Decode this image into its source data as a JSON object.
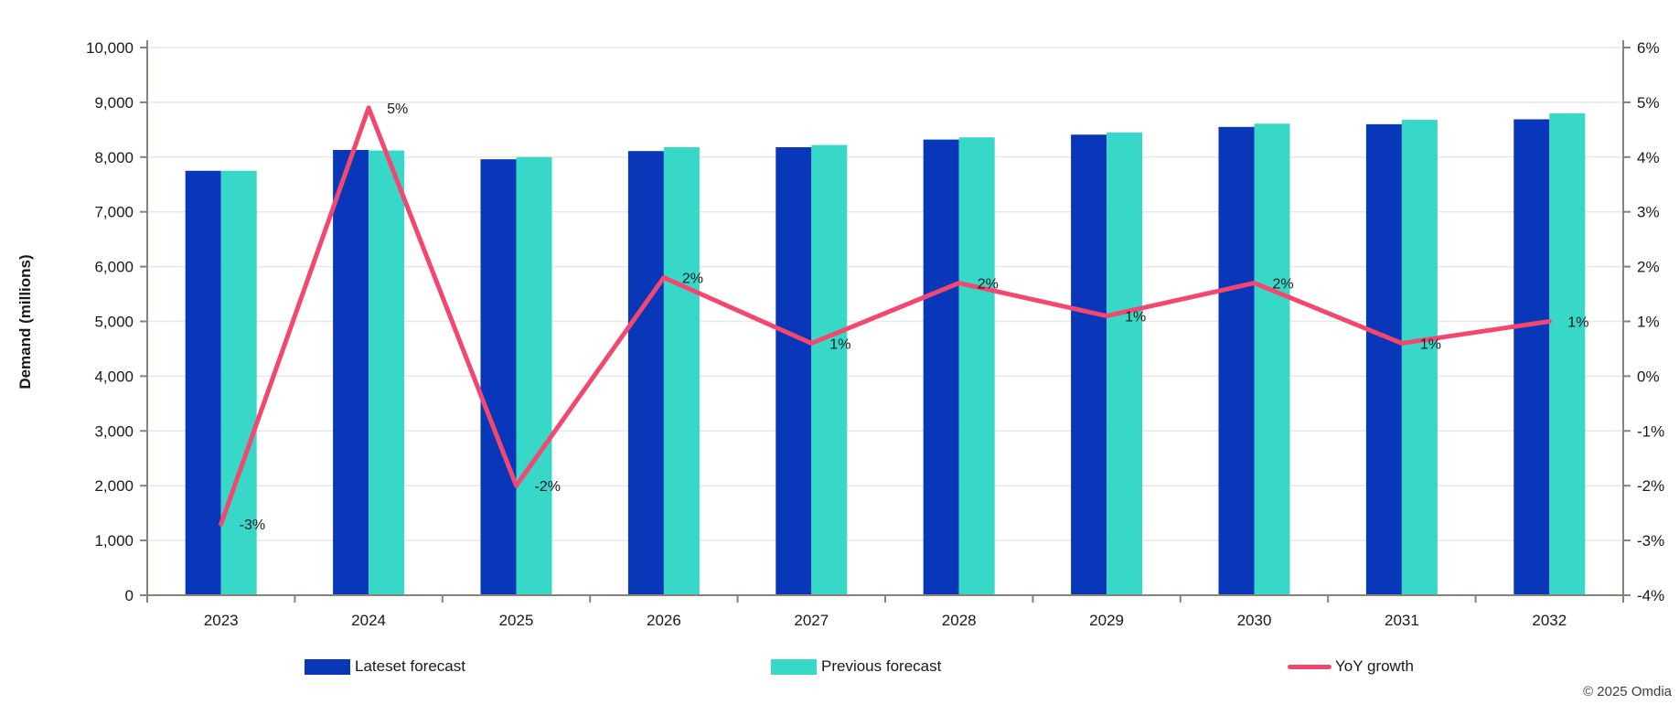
{
  "chart_data": {
    "type": "bar",
    "subtype": "grouped-bars-with-line-dual-axis",
    "title": "",
    "categories": [
      "2023",
      "2024",
      "2025",
      "2026",
      "2027",
      "2028",
      "2029",
      "2030",
      "2031",
      "2032"
    ],
    "series": [
      {
        "name": "Lateset forecast",
        "type": "bar",
        "axis": "left",
        "values": [
          7750,
          8130,
          7960,
          8110,
          8180,
          8320,
          8410,
          8550,
          8600,
          8690
        ]
      },
      {
        "name": "Previous forecast",
        "type": "bar",
        "axis": "left",
        "values": [
          7750,
          8120,
          8000,
          8180,
          8220,
          8360,
          8450,
          8610,
          8680,
          8800
        ]
      },
      {
        "name": "YoY growth",
        "type": "line",
        "axis": "right",
        "values": [
          -2.7,
          4.9,
          -2.0,
          1.8,
          0.6,
          1.7,
          1.1,
          1.7,
          0.6,
          1.0
        ],
        "point_labels": [
          "-3%",
          "5%",
          "-2%",
          "2%",
          "1%",
          "2%",
          "1%",
          "2%",
          "1%",
          "1%"
        ]
      }
    ],
    "left_axis": {
      "label": "Demand (millions)",
      "min": 0,
      "max": 10000,
      "step": 1000,
      "tick_labels": [
        "0",
        "1,000",
        "2,000",
        "3,000",
        "4,000",
        "5,000",
        "6,000",
        "7,000",
        "8,000",
        "9,000",
        "10,000"
      ]
    },
    "right_axis": {
      "label": "",
      "min": -4,
      "max": 6,
      "step": 1,
      "tick_labels": [
        "-4%",
        "-3%",
        "-2%",
        "-1%",
        "0%",
        "1%",
        "2%",
        "3%",
        "4%",
        "5%",
        "6%"
      ]
    },
    "grid": true,
    "legend_position": "bottom"
  },
  "footer": {
    "copyright": "© 2025 Omdia"
  },
  "colors": {
    "latest_bar": "#0838B9",
    "previous_bar": "#38D8C8",
    "yoy_line": "#F4476F",
    "grid": "#E8E8E8",
    "axis": "#878378",
    "text": "#1A1A1A"
  }
}
